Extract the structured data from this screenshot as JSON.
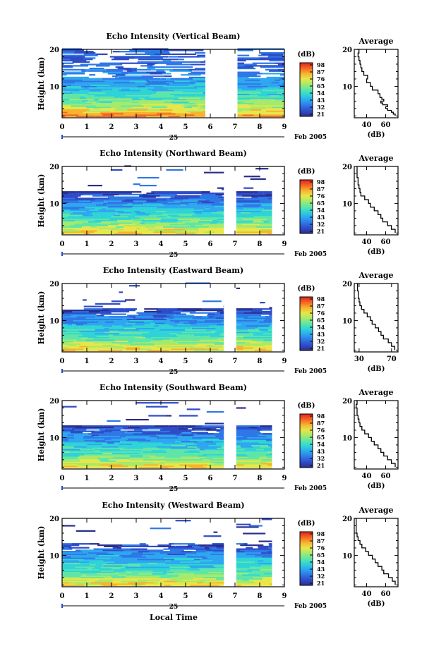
{
  "colormap": [
    "#2a2e8c",
    "#2f4cc7",
    "#2f77e6",
    "#2ea6f0",
    "#2fd3d8",
    "#5ee6a8",
    "#a6ea6a",
    "#e7e64a",
    "#f7b22e",
    "#f46424",
    "#e0241c"
  ],
  "colorbar": {
    "unit": "(dB)",
    "ticks": [
      "98",
      "87",
      "76",
      "65",
      "54",
      "43",
      "32",
      "21"
    ]
  },
  "time_axis": {
    "ticks": [
      "0",
      "1",
      "2",
      "3",
      "4",
      "5",
      "6",
      "7",
      "8",
      "9"
    ],
    "day": "25",
    "month_year": "Feb 2005",
    "xlabel": "Local Time"
  },
  "avg_title": "Average",
  "avg_xlabel": "(dB)",
  "chart_data": [
    {
      "type": "heatmap",
      "title": "Echo Intensity (Vertical Beam)",
      "ylabel": "Height (km)",
      "yticks": [
        "10",
        "20"
      ],
      "ylim": [
        1.5,
        20
      ],
      "xlim": [
        0,
        9
      ],
      "data_gap_hours": [
        5.8,
        6.6,
        6.6,
        7.1
      ],
      "band_levels_by_height_km": [
        [
          2,
          0.82
        ],
        [
          4,
          0.62
        ],
        [
          6,
          0.52
        ],
        [
          8,
          0.42
        ],
        [
          10,
          0.32
        ],
        [
          12,
          0.28
        ],
        [
          14,
          0.22
        ],
        [
          16,
          0.18
        ],
        [
          18,
          0.2
        ],
        [
          20,
          0.18
        ]
      ],
      "average_profile": {
        "xticks": [
          "40",
          "60"
        ],
        "xlim": [
          27,
          73
        ],
        "ylim": [
          1.5,
          20
        ],
        "yticks": [
          "10",
          "20"
        ],
        "points": [
          [
            2,
            70
          ],
          [
            2.5,
            68
          ],
          [
            3,
            66
          ],
          [
            3.5,
            62
          ],
          [
            4,
            60
          ],
          [
            4.5,
            62
          ],
          [
            5,
            57
          ],
          [
            5.5,
            55
          ],
          [
            6,
            58
          ],
          [
            6.5,
            56
          ],
          [
            7,
            54
          ],
          [
            8,
            52
          ],
          [
            9,
            46
          ],
          [
            10,
            44
          ],
          [
            11,
            40
          ],
          [
            12,
            41
          ],
          [
            13,
            37
          ],
          [
            14,
            35
          ],
          [
            15,
            34
          ],
          [
            16,
            33
          ],
          [
            17,
            32
          ],
          [
            18,
            31
          ],
          [
            19,
            32
          ],
          [
            20,
            30
          ]
        ]
      }
    },
    {
      "type": "heatmap",
      "title": "Echo Intensity (Northward Beam)",
      "ylabel": "Height (km)",
      "yticks": [
        "10",
        "20"
      ],
      "ylim": [
        1.5,
        20
      ],
      "xlim": [
        0,
        9
      ],
      "data_gap_hours": [
        6.55,
        7.05
      ],
      "band_levels_by_height_km": [
        [
          2,
          0.72
        ],
        [
          3.5,
          0.6
        ],
        [
          5,
          0.5
        ],
        [
          7,
          0.42
        ],
        [
          9,
          0.32
        ],
        [
          11,
          0.22
        ],
        [
          12.5,
          0.12
        ]
      ],
      "average_profile": {
        "xticks": [
          "40",
          "60"
        ],
        "xlim": [
          27,
          73
        ],
        "ylim": [
          1.5,
          20
        ],
        "yticks": [
          "10",
          "20"
        ],
        "points": [
          [
            2,
            70
          ],
          [
            3,
            66
          ],
          [
            4,
            62
          ],
          [
            5,
            57
          ],
          [
            6,
            55
          ],
          [
            7,
            52
          ],
          [
            8,
            48
          ],
          [
            9,
            44
          ],
          [
            10,
            42
          ],
          [
            11,
            38
          ],
          [
            12,
            34
          ],
          [
            13,
            33
          ],
          [
            14,
            32
          ],
          [
            15,
            31
          ],
          [
            16,
            31
          ],
          [
            17,
            30
          ],
          [
            18,
            30
          ],
          [
            19,
            30
          ],
          [
            20,
            30
          ]
        ]
      }
    },
    {
      "type": "heatmap",
      "title": "Echo Intensity (Eastward Beam)",
      "ylabel": "Height (km)",
      "yticks": [
        "10",
        "20"
      ],
      "ylim": [
        1.5,
        20
      ],
      "xlim": [
        0,
        9
      ],
      "data_gap_hours": [
        6.55,
        7.05
      ],
      "band_levels_by_height_km": [
        [
          2,
          0.72
        ],
        [
          3.5,
          0.6
        ],
        [
          5,
          0.5
        ],
        [
          7,
          0.42
        ],
        [
          9,
          0.32
        ],
        [
          11,
          0.22
        ],
        [
          12.5,
          0.12
        ]
      ],
      "average_profile": {
        "xticks": [
          "30",
          "70"
        ],
        "xlim": [
          24,
          78
        ],
        "ylim": [
          1.5,
          20
        ],
        "yticks": [
          "10",
          "20"
        ],
        "points": [
          [
            2,
            74
          ],
          [
            3,
            70
          ],
          [
            4,
            66
          ],
          [
            5,
            60
          ],
          [
            6,
            57
          ],
          [
            7,
            54
          ],
          [
            8,
            50
          ],
          [
            9,
            46
          ],
          [
            10,
            44
          ],
          [
            11,
            40
          ],
          [
            12,
            36
          ],
          [
            13,
            33
          ],
          [
            14,
            31
          ],
          [
            15,
            30
          ],
          [
            16,
            29
          ],
          [
            17,
            29
          ],
          [
            18,
            28
          ],
          [
            19,
            28
          ],
          [
            20,
            28
          ]
        ]
      }
    },
    {
      "type": "heatmap",
      "title": "Echo Intensity (Southward Beam)",
      "ylabel": "Height (km)",
      "yticks": [
        "10",
        "20"
      ],
      "ylim": [
        1.5,
        20
      ],
      "xlim": [
        0,
        9
      ],
      "data_gap_hours": [
        6.55,
        7.05
      ],
      "band_levels_by_height_km": [
        [
          2,
          0.72
        ],
        [
          3.5,
          0.6
        ],
        [
          5,
          0.5
        ],
        [
          7,
          0.42
        ],
        [
          9,
          0.32
        ],
        [
          11,
          0.22
        ],
        [
          12.5,
          0.12
        ]
      ],
      "average_profile": {
        "xticks": [
          "40",
          "60"
        ],
        "xlim": [
          27,
          73
        ],
        "ylim": [
          1.5,
          20
        ],
        "yticks": [
          "10",
          "20"
        ],
        "points": [
          [
            2,
            70
          ],
          [
            3,
            66
          ],
          [
            4,
            62
          ],
          [
            5,
            58
          ],
          [
            6,
            55
          ],
          [
            7,
            52
          ],
          [
            8,
            48
          ],
          [
            9,
            45
          ],
          [
            10,
            42
          ],
          [
            11,
            38
          ],
          [
            12,
            35
          ],
          [
            13,
            33
          ],
          [
            14,
            32
          ],
          [
            15,
            31
          ],
          [
            16,
            30
          ],
          [
            17,
            30
          ],
          [
            18,
            29
          ],
          [
            19,
            30
          ],
          [
            20,
            29
          ]
        ]
      }
    },
    {
      "type": "heatmap",
      "title": "Echo Intensity (Westward Beam)",
      "ylabel": "Height (km)",
      "yticks": [
        "10",
        "20"
      ],
      "ylim": [
        1.5,
        20
      ],
      "xlim": [
        0,
        9
      ],
      "data_gap_hours": [
        6.55,
        7.05
      ],
      "band_levels_by_height_km": [
        [
          2,
          0.72
        ],
        [
          3.5,
          0.6
        ],
        [
          5,
          0.5
        ],
        [
          7,
          0.42
        ],
        [
          9,
          0.32
        ],
        [
          11,
          0.22
        ],
        [
          12.5,
          0.12
        ]
      ],
      "average_profile": {
        "xticks": [
          "40",
          "60"
        ],
        "xlim": [
          27,
          73
        ],
        "ylim": [
          1.5,
          20
        ],
        "yticks": [
          "10",
          "20"
        ],
        "points": [
          [
            2,
            70
          ],
          [
            3,
            67
          ],
          [
            4,
            63
          ],
          [
            5,
            58
          ],
          [
            6,
            56
          ],
          [
            7,
            52
          ],
          [
            8,
            49
          ],
          [
            9,
            46
          ],
          [
            10,
            42
          ],
          [
            11,
            39
          ],
          [
            12,
            35
          ],
          [
            13,
            33
          ],
          [
            14,
            31
          ],
          [
            15,
            30
          ],
          [
            16,
            29
          ],
          [
            17,
            29
          ],
          [
            18,
            29
          ],
          [
            19,
            29
          ],
          [
            20,
            28
          ]
        ]
      }
    }
  ]
}
